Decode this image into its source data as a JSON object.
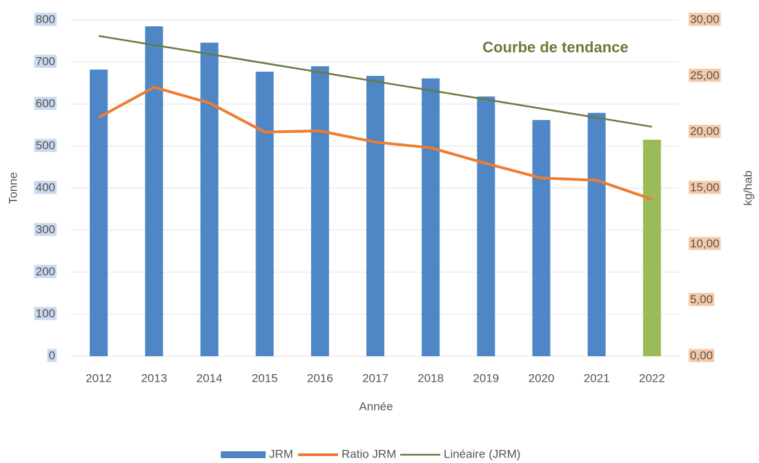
{
  "chart_data": {
    "type": "bar-line",
    "annotation": "Courbe de tendance",
    "x_label": "Année",
    "y_label": "Tonne",
    "y2_label": "kg/hab",
    "categories": [
      "2012",
      "2013",
      "2014",
      "2015",
      "2016",
      "2017",
      "2018",
      "2019",
      "2020",
      "2021",
      "2022"
    ],
    "series": [
      {
        "name": "JRM",
        "type": "bar",
        "color": "#4f86c6",
        "colors": [
          "#4f86c6",
          "#4f86c6",
          "#4f86c6",
          "#4f86c6",
          "#4f86c6",
          "#4f86c6",
          "#4f86c6",
          "#4f86c6",
          "#4f86c6",
          "#4f86c6",
          "#9bbb59"
        ],
        "values": [
          682,
          785,
          746,
          677,
          690,
          667,
          661,
          618,
          562,
          579,
          515
        ]
      },
      {
        "name": "Ratio JRM",
        "type": "line",
        "axis": "y2",
        "color": "#ed7d31",
        "values": [
          21.3,
          24.0,
          22.6,
          20.0,
          20.1,
          19.1,
          18.6,
          17.2,
          15.9,
          15.7,
          14.0
        ]
      },
      {
        "name": "Linéaire (JRM)",
        "type": "line",
        "color": "#6b7a3a",
        "values": [
          762,
          740.4,
          718.8,
          697.2,
          675.6,
          654,
          632.4,
          610.8,
          589.2,
          567.6,
          546
        ]
      }
    ],
    "ylim": [
      0,
      800
    ],
    "yticks": [
      0,
      100,
      200,
      300,
      400,
      500,
      600,
      700,
      800
    ],
    "y2lim": [
      0,
      30
    ],
    "y2ticks": [
      {
        "value": 0,
        "label": "0,00"
      },
      {
        "value": 5,
        "label": "5,00"
      },
      {
        "value": 10,
        "label": "10,00"
      },
      {
        "value": 15,
        "label": "15,00"
      },
      {
        "value": 20,
        "label": "20,00"
      },
      {
        "value": 25,
        "label": "25,00"
      },
      {
        "value": 30,
        "label": "30,00"
      }
    ],
    "grid": true,
    "legend": "bottom"
  }
}
